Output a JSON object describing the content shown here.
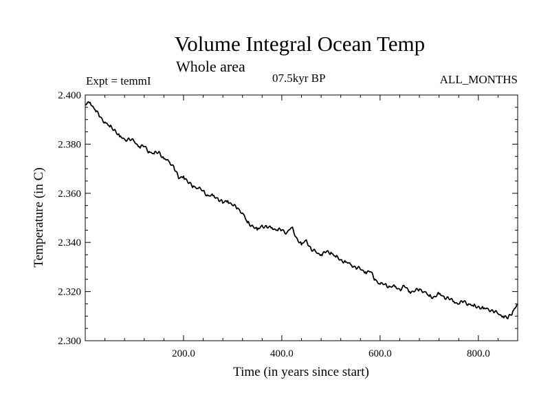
{
  "header": {
    "title": "Volume Integral Ocean Temp",
    "subtitle": "Whole area",
    "experiment": "Expt = temmI",
    "period": "07.5kyr BP",
    "months": "ALL_MONTHS"
  },
  "chart_data": {
    "type": "line",
    "title": "Volume Integral Ocean Temp",
    "subtitle": "Whole area",
    "xlabel": "Time (in years since start)",
    "ylabel": "Temperature (in C)",
    "xlim": [
      0,
      880
    ],
    "ylim": [
      2.3,
      2.4
    ],
    "x_ticks": [
      200,
      400,
      600,
      800
    ],
    "x_tick_labels": [
      "200.0",
      "400.0",
      "600.0",
      "800.0"
    ],
    "y_ticks": [
      2.3,
      2.32,
      2.34,
      2.36,
      2.38,
      2.4
    ],
    "y_tick_labels": [
      "2.300",
      "2.320",
      "2.340",
      "2.360",
      "2.380",
      "2.400"
    ],
    "grid": false,
    "series": [
      {
        "name": "Volume Integral Ocean Temp",
        "x": [
          0,
          10,
          20,
          30,
          40,
          50,
          60,
          70,
          80,
          90,
          100,
          110,
          120,
          130,
          140,
          150,
          160,
          170,
          180,
          190,
          200,
          210,
          220,
          230,
          240,
          250,
          260,
          270,
          280,
          290,
          300,
          310,
          320,
          330,
          340,
          350,
          360,
          370,
          380,
          390,
          400,
          410,
          420,
          430,
          440,
          450,
          460,
          470,
          480,
          490,
          500,
          510,
          520,
          530,
          540,
          550,
          560,
          570,
          580,
          590,
          600,
          610,
          620,
          630,
          640,
          650,
          660,
          670,
          680,
          690,
          700,
          710,
          720,
          730,
          740,
          750,
          760,
          770,
          780,
          790,
          800,
          810,
          820,
          830,
          840,
          850,
          860,
          870,
          880
        ],
        "values": [
          2.396,
          2.397,
          2.394,
          2.391,
          2.389,
          2.387,
          2.386,
          2.383,
          2.382,
          2.382,
          2.381,
          2.379,
          2.379,
          2.377,
          2.376,
          2.377,
          2.374,
          2.373,
          2.371,
          2.366,
          2.367,
          2.364,
          2.363,
          2.362,
          2.361,
          2.359,
          2.359,
          2.358,
          2.356,
          2.357,
          2.355,
          2.354,
          2.352,
          2.348,
          2.347,
          2.345,
          2.347,
          2.346,
          2.346,
          2.345,
          2.345,
          2.344,
          2.346,
          2.342,
          2.339,
          2.341,
          2.337,
          2.336,
          2.335,
          2.336,
          2.336,
          2.334,
          2.333,
          2.332,
          2.331,
          2.33,
          2.329,
          2.328,
          2.328,
          2.325,
          2.323,
          2.323,
          2.322,
          2.322,
          2.321,
          2.322,
          2.32,
          2.32,
          2.321,
          2.32,
          2.318,
          2.318,
          2.319,
          2.318,
          2.317,
          2.316,
          2.315,
          2.316,
          2.315,
          2.314,
          2.314,
          2.313,
          2.313,
          2.312,
          2.311,
          2.31,
          2.309,
          2.312,
          2.315
        ]
      }
    ]
  }
}
